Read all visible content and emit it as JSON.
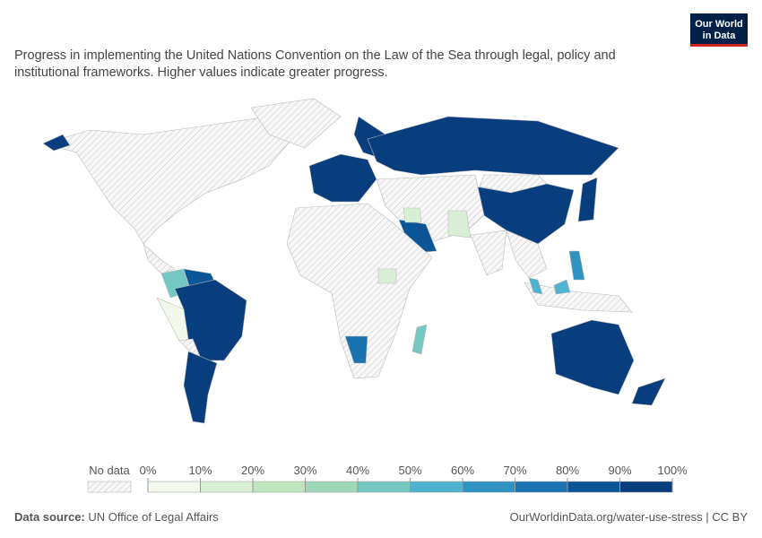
{
  "header": {
    "subtitle_lines": [
      "Progress in implementing the United Nations Convention on the Law of the Sea through legal, policy and",
      "institutional frameworks. Higher values indicate greater progress."
    ]
  },
  "logo": {
    "lines": [
      "Our World",
      "in Data"
    ]
  },
  "legend": {
    "no_data": "No data",
    "range": [
      0,
      100
    ],
    "ticks": [
      {
        "value": 0,
        "label": "0%"
      },
      {
        "value": 10,
        "label": "10%"
      },
      {
        "value": 20,
        "label": "20%"
      },
      {
        "value": 30,
        "label": "30%"
      },
      {
        "value": 40,
        "label": "40%"
      },
      {
        "value": 50,
        "label": "50%"
      },
      {
        "value": 60,
        "label": "60%"
      },
      {
        "value": 70,
        "label": "70%"
      },
      {
        "value": 80,
        "label": "80%"
      },
      {
        "value": 90,
        "label": "90%"
      },
      {
        "value": 100,
        "label": "100%"
      }
    ],
    "colors": [
      "#f2f9ec",
      "#d9efd5",
      "#bfe5be",
      "#9fd8b9",
      "#74c8c1",
      "#4eb2d0",
      "#2e92c2",
      "#1a72b0",
      "#0c5597",
      "#083d7e"
    ]
  },
  "footer": {
    "source_label": "Data source:",
    "source": "UN Office of Legal Affairs",
    "url": "OurWorldinData.org/water-use-stress | CC BY"
  }
}
